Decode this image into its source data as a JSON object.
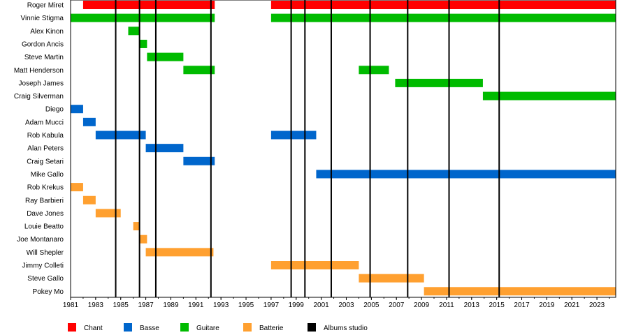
{
  "chart_data": {
    "type": "timeline",
    "xlim": [
      1981,
      2024.5
    ],
    "x_ticks": [
      "1981",
      "1983",
      "1985",
      "1987",
      "1989",
      "1991",
      "1993",
      "1995",
      "1997",
      "1999",
      "2001",
      "2003",
      "2005",
      "2007",
      "2009",
      "2011",
      "2013",
      "2015",
      "2017",
      "2019",
      "2021",
      "2023"
    ],
    "roles": [
      {
        "name": "Chant",
        "color": "#ff0000"
      },
      {
        "name": "Basse",
        "color": "#0066cc"
      },
      {
        "name": "Guitare",
        "color": "#00bb00"
      },
      {
        "name": "Batterie",
        "color": "#ffa030"
      },
      {
        "name": "Albums studio",
        "color": "#000000"
      }
    ],
    "members": [
      {
        "name": "Roger Miret",
        "role": "Chant",
        "periods": [
          [
            1982,
            1992.5
          ],
          [
            1997,
            2024.5
          ]
        ]
      },
      {
        "name": "Vinnie Stigma",
        "role": "Guitare",
        "periods": [
          [
            1981,
            1992.5
          ],
          [
            1997,
            2024.5
          ]
        ]
      },
      {
        "name": "Alex Kinon",
        "role": "Guitare",
        "periods": [
          [
            1985.6,
            1986.5
          ]
        ]
      },
      {
        "name": "Gordon Ancis",
        "role": "Guitare",
        "periods": [
          [
            1986.5,
            1987.1
          ]
        ]
      },
      {
        "name": "Steve Martin",
        "role": "Guitare",
        "periods": [
          [
            1987.1,
            1990.0
          ]
        ]
      },
      {
        "name": "Matt Henderson",
        "role": "Guitare",
        "periods": [
          [
            1990.0,
            1992.5
          ],
          [
            2004.0,
            2006.4
          ]
        ]
      },
      {
        "name": "Joseph James",
        "role": "Guitare",
        "periods": [
          [
            2006.9,
            2013.9
          ]
        ]
      },
      {
        "name": "Craig Silverman",
        "role": "Guitare",
        "periods": [
          [
            2013.9,
            2024.5
          ]
        ]
      },
      {
        "name": "Diego",
        "role": "Basse",
        "periods": [
          [
            1981,
            1982
          ]
        ]
      },
      {
        "name": "Adam Mucci",
        "role": "Basse",
        "periods": [
          [
            1982,
            1983
          ]
        ]
      },
      {
        "name": "Rob Kabula",
        "role": "Basse",
        "periods": [
          [
            1983,
            1987.0
          ],
          [
            1997,
            2000.6
          ]
        ]
      },
      {
        "name": "Alan Peters",
        "role": "Basse",
        "periods": [
          [
            1987.0,
            1990.0
          ]
        ]
      },
      {
        "name": "Craig Setari",
        "role": "Basse",
        "periods": [
          [
            1990.0,
            1992.5
          ]
        ]
      },
      {
        "name": "Mike Gallo",
        "role": "Basse",
        "periods": [
          [
            2000.6,
            2024.5
          ]
        ]
      },
      {
        "name": "Rob Krekus",
        "role": "Batterie",
        "periods": [
          [
            1981,
            1982
          ]
        ]
      },
      {
        "name": "Ray Barbieri",
        "role": "Batterie",
        "periods": [
          [
            1982,
            1983
          ]
        ]
      },
      {
        "name": "Dave Jones",
        "role": "Batterie",
        "periods": [
          [
            1983,
            1985
          ]
        ]
      },
      {
        "name": "Louie Beatto",
        "role": "Batterie",
        "periods": [
          [
            1986.0,
            1986.5
          ]
        ]
      },
      {
        "name": "Joe Montanaro",
        "role": "Batterie",
        "periods": [
          [
            1986.5,
            1987.1
          ]
        ]
      },
      {
        "name": "Will Shepler",
        "role": "Batterie",
        "periods": [
          [
            1987.0,
            1992.4
          ]
        ]
      },
      {
        "name": "Jimmy Colleti",
        "role": "Batterie",
        "periods": [
          [
            1997,
            2004.0
          ]
        ]
      },
      {
        "name": "Steve Gallo",
        "role": "Batterie",
        "periods": [
          [
            2004.0,
            2009.2
          ]
        ]
      },
      {
        "name": "Pokey Mo",
        "role": "Batterie",
        "periods": [
          [
            2009.2,
            2024.5
          ]
        ]
      }
    ],
    "album_lines": [
      1984.6,
      1986.5,
      1987.8,
      1992.2,
      1998.6,
      1999.7,
      2001.8,
      2004.9,
      2007.9,
      2011.2,
      2015.2
    ]
  }
}
